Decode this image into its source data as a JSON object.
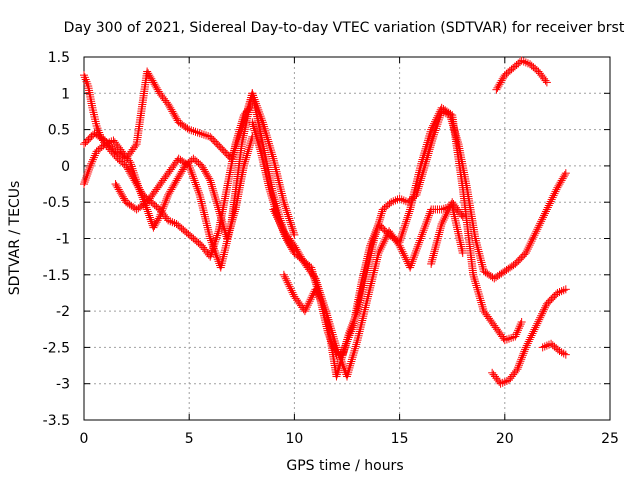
{
  "chart_data": {
    "type": "scatter",
    "title": "Day 300 of 2021, Sidereal Day-to-day VTEC variation (SDTVAR) for receiver brst",
    "xlabel": "GPS time / hours",
    "ylabel": "SDTVAR / TECUs",
    "xlim": [
      0,
      25
    ],
    "ylim": [
      -3.5,
      1.5
    ],
    "xticks": [
      0,
      5,
      10,
      15,
      20,
      25
    ],
    "xtick_labels": [
      "0",
      "5",
      "10",
      "15",
      "20",
      "25"
    ],
    "yticks": [
      -3.5,
      -3,
      -2.5,
      -2,
      -1.5,
      -1,
      -0.5,
      0,
      0.5,
      1,
      1.5
    ],
    "ytick_labels": [
      "-3.5",
      "-3",
      "-2.5",
      "-2",
      "-1.5",
      "-1",
      "-0.5",
      "0",
      "0.5",
      "1",
      "1.5"
    ],
    "grid": true,
    "marker": "+",
    "color": "#ff0000",
    "series": [
      {
        "x": [
          0.0,
          0.2,
          0.4,
          0.6,
          0.8,
          1.0,
          1.3,
          1.6,
          2.0,
          2.4,
          2.8,
          3.2,
          3.6,
          4.0,
          4.4,
          4.8,
          5.2,
          5.6,
          6.0,
          6.4,
          6.8,
          7.2,
          7.6,
          8.0
        ],
        "y": [
          1.25,
          1.1,
          0.8,
          0.55,
          0.4,
          0.3,
          0.2,
          0.1,
          0.0,
          -0.2,
          -0.4,
          -0.5,
          -0.6,
          -0.75,
          -0.8,
          -0.9,
          -1.0,
          -1.1,
          -1.25,
          -0.9,
          -0.3,
          0.3,
          0.7,
          0.85
        ]
      },
      {
        "x": [
          0.0,
          0.3,
          0.6,
          1.0,
          1.4,
          1.8,
          2.2,
          2.6,
          3.0,
          3.3,
          3.6,
          4.0,
          4.4,
          4.8,
          5.2,
          5.6,
          6.0,
          6.4,
          6.8,
          7.2,
          7.6,
          8.0
        ],
        "y": [
          -0.25,
          0.0,
          0.2,
          0.3,
          0.35,
          0.2,
          0.05,
          -0.3,
          -0.6,
          -0.85,
          -0.7,
          -0.4,
          -0.2,
          0.0,
          0.1,
          0.0,
          -0.2,
          -0.6,
          -1.0,
          -0.6,
          0.0,
          0.4
        ]
      },
      {
        "x": [
          0.0,
          0.5,
          1.0,
          1.5,
          2.0,
          2.5,
          3.0,
          3.3,
          3.6,
          4.0,
          4.5,
          5.0,
          5.5,
          6.0,
          6.5,
          7.0,
          7.5,
          8.0,
          8.5,
          9.0,
          9.5,
          10.0
        ],
        "y": [
          0.3,
          0.45,
          0.35,
          0.2,
          0.1,
          0.3,
          1.3,
          1.15,
          1.0,
          0.85,
          0.6,
          0.5,
          0.45,
          0.4,
          0.25,
          0.1,
          0.5,
          1.0,
          0.3,
          -0.4,
          -0.9,
          -1.2
        ]
      },
      {
        "x": [
          1.5,
          2.0,
          2.5,
          3.0,
          3.5,
          4.0,
          4.5,
          5.0,
          5.5,
          6.0,
          6.5,
          7.0,
          7.5,
          8.0,
          8.5,
          9.0,
          9.5,
          10.0
        ],
        "y": [
          -0.25,
          -0.5,
          -0.6,
          -0.5,
          -0.3,
          -0.1,
          0.1,
          0.0,
          -0.4,
          -1.0,
          -1.4,
          -0.8,
          0.3,
          1.0,
          0.6,
          0.1,
          -0.5,
          -0.95
        ]
      },
      {
        "x": [
          8.0,
          8.4,
          8.8,
          9.2,
          9.6,
          10.0,
          10.4,
          10.8,
          11.2,
          11.6,
          12.0,
          12.3,
          12.6,
          13.0,
          13.4,
          13.8,
          14.2,
          14.6,
          15.0,
          15.4,
          15.8,
          16.2,
          16.6,
          17.0,
          17.4,
          17.8,
          18.2,
          18.6,
          19.0,
          19.5,
          20.0,
          20.5,
          21.0,
          21.5,
          22.0,
          22.5,
          22.9
        ],
        "y": [
          0.6,
          0.2,
          -0.3,
          -0.7,
          -1.0,
          -1.2,
          -1.3,
          -1.4,
          -1.8,
          -2.3,
          -2.6,
          -2.6,
          -2.3,
          -2.0,
          -1.5,
          -1.0,
          -0.6,
          -0.5,
          -0.45,
          -0.5,
          -0.4,
          0.0,
          0.4,
          0.75,
          0.7,
          0.3,
          -0.3,
          -1.0,
          -1.45,
          -1.55,
          -1.45,
          -1.35,
          -1.2,
          -0.9,
          -0.6,
          -0.3,
          -0.1
        ]
      },
      {
        "x": [
          9.0,
          9.5,
          10.0,
          10.5,
          11.0,
          11.5,
          12.0,
          12.4,
          12.8,
          13.2,
          13.6,
          14.0,
          14.5,
          15.0,
          15.5,
          16.0,
          16.5,
          17.0,
          17.5,
          18.0,
          18.5,
          19.0,
          19.5,
          20.0,
          20.5,
          20.8
        ],
        "y": [
          -0.6,
          -0.9,
          -1.1,
          -1.35,
          -1.55,
          -2.0,
          -2.9,
          -2.5,
          -2.2,
          -1.6,
          -1.1,
          -0.8,
          -0.95,
          -1.05,
          -0.6,
          0.0,
          0.5,
          0.8,
          0.7,
          -0.3,
          -1.5,
          -2.0,
          -2.2,
          -2.4,
          -2.35,
          -2.15
        ]
      },
      {
        "x": [
          9.5,
          10.0,
          10.5,
          11.0,
          11.5,
          12.0,
          12.5,
          13.0,
          13.5,
          14.0,
          14.5,
          15.0,
          15.5,
          16.0,
          16.5,
          17.0,
          17.5,
          18.0
        ],
        "y": [
          -1.5,
          -1.8,
          -2.0,
          -1.7,
          -2.0,
          -2.5,
          -2.9,
          -2.4,
          -1.8,
          -1.2,
          -0.9,
          -1.1,
          -1.4,
          -1.0,
          -0.6,
          -0.6,
          -0.55,
          -1.2
        ]
      },
      {
        "x": [
          16.5,
          17.0,
          17.5,
          18.0
        ],
        "y": [
          -1.35,
          -0.8,
          -0.5,
          -0.7
        ]
      },
      {
        "x": [
          19.4,
          19.8,
          20.2,
          20.6,
          21.0,
          21.5,
          22.0,
          22.5,
          22.9
        ],
        "y": [
          -2.85,
          -3.0,
          -2.95,
          -2.8,
          -2.5,
          -2.2,
          -1.9,
          -1.75,
          -1.7
        ]
      },
      {
        "x": [
          21.8,
          22.2,
          22.6,
          22.9
        ],
        "y": [
          -2.5,
          -2.45,
          -2.55,
          -2.6
        ]
      },
      {
        "x": [
          19.6,
          20.0,
          20.4,
          20.8,
          21.2,
          21.6,
          22.0
        ],
        "y": [
          1.05,
          1.25,
          1.35,
          1.45,
          1.4,
          1.3,
          1.15
        ]
      }
    ]
  }
}
